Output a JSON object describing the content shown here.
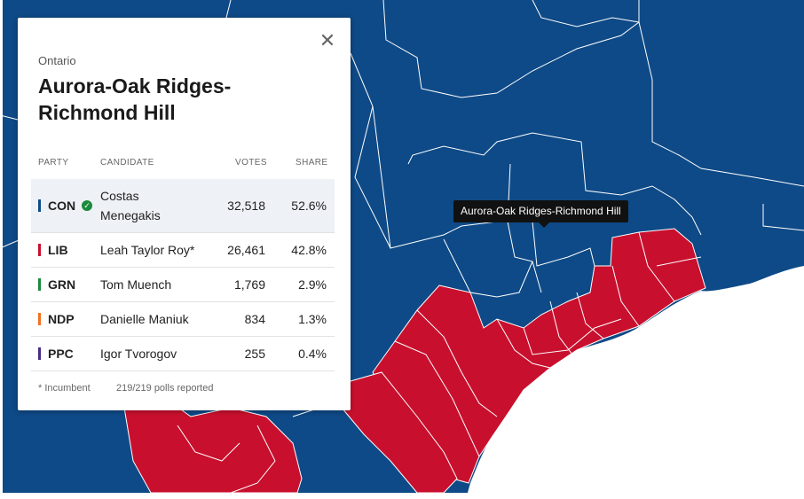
{
  "colors": {
    "con": "#0e4a87",
    "lib": "#c8102e",
    "grn": "#1b8a3d",
    "ndp": "#f37021",
    "ppc": "#4b2c84",
    "border": "#ffffff",
    "water": "#ffffff"
  },
  "panel": {
    "region": "Ontario",
    "title": "Aurora-Oak Ridges-Richmond Hill",
    "close_icon": "close-icon",
    "headers": {
      "party": "PARTY",
      "candidate": "CANDIDATE",
      "votes": "VOTES",
      "share": "SHARE"
    },
    "rows": [
      {
        "party": "CON",
        "candidate": "Costas Menegakis",
        "votes": "32,518",
        "share": "52.6%",
        "winner": true,
        "color": "#0e4a87"
      },
      {
        "party": "LIB",
        "candidate": "Leah Taylor Roy*",
        "votes": "26,461",
        "share": "42.8%",
        "winner": false,
        "color": "#c8102e"
      },
      {
        "party": "GRN",
        "candidate": "Tom Muench",
        "votes": "1,769",
        "share": "2.9%",
        "winner": false,
        "color": "#1b8a3d"
      },
      {
        "party": "NDP",
        "candidate": "Danielle Maniuk",
        "votes": "834",
        "share": "1.3%",
        "winner": false,
        "color": "#f37021"
      },
      {
        "party": "PPC",
        "candidate": "Igor Tvorogov",
        "votes": "255",
        "share": "0.4%",
        "winner": false,
        "color": "#4b2c84"
      }
    ],
    "footer": {
      "incumbent": "* Incumbent",
      "polls": "219/219 polls reported"
    }
  },
  "tooltip": {
    "label": "Aurora-Oak Ridges-Richmond Hill"
  }
}
